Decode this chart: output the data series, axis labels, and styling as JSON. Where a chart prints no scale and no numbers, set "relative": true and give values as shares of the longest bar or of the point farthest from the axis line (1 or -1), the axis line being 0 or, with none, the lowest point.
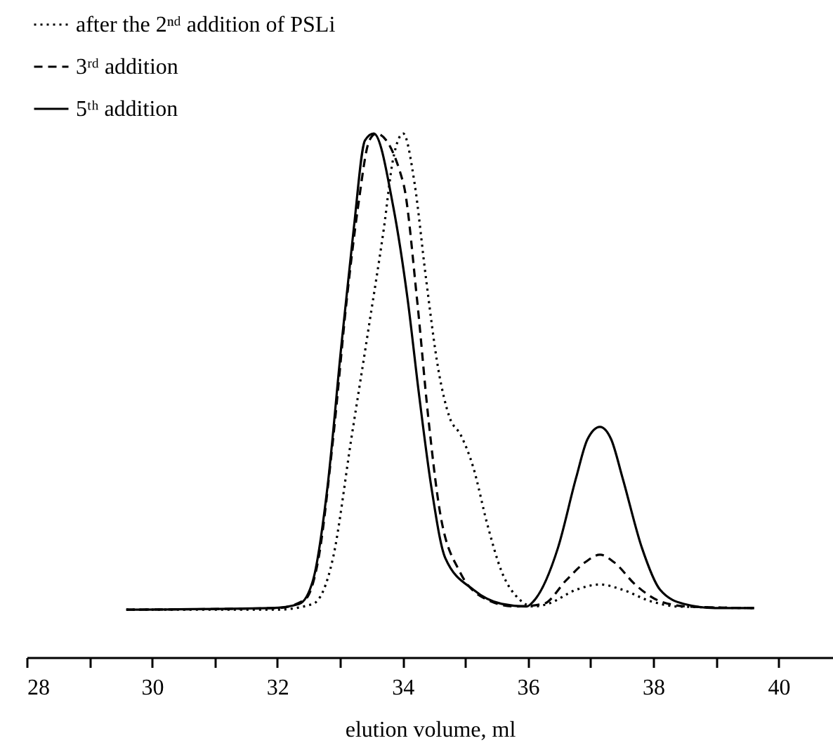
{
  "chart_data": {
    "type": "line",
    "relative": true,
    "xlabel": "elution volume, ml",
    "xlim": [
      28,
      40.87
    ],
    "xticks": [
      28,
      {
        "value": 29,
        "label": null
      },
      30,
      {
        "value": 31,
        "label": null
      },
      32,
      {
        "value": 33,
        "label": null
      },
      34,
      {
        "value": 35,
        "label": null
      },
      36,
      {
        "value": 37,
        "label": null
      },
      38,
      {
        "value": 39,
        "label": null
      },
      40
    ],
    "legend": "top left",
    "marker": "none",
    "grid": false,
    "series": [
      {
        "name": "after the 2ⁿᵈ addition of PSLi",
        "color": "#000000",
        "line_style": "dotted",
        "x": [
          29.59,
          32.0,
          32.57,
          32.89,
          33.18,
          33.47,
          33.7,
          33.85,
          34.01,
          34.19,
          34.37,
          34.57,
          34.75,
          34.93,
          35.13,
          35.35,
          35.58,
          35.87,
          36.09,
          36.32,
          36.77,
          37.15,
          37.51,
          37.96,
          38.4,
          39.61
        ],
        "values": [
          0.091,
          0.091,
          0.102,
          0.19,
          0.416,
          0.638,
          0.818,
          0.952,
          1,
          0.906,
          0.727,
          0.55,
          0.458,
          0.424,
          0.362,
          0.255,
          0.164,
          0.11,
          0.097,
          0.102,
          0.129,
          0.139,
          0.129,
          0.107,
          0.097,
          0.094
        ]
      },
      {
        "name": "3ʳᵈ addition",
        "color": "#000000",
        "line_style": "dashed",
        "x": [
          29.59,
          32.0,
          32.44,
          32.66,
          32.89,
          33.11,
          33.29,
          33.47,
          33.58,
          34.01,
          34.23,
          34.41,
          34.59,
          34.91,
          35.35,
          35.8,
          36.25,
          36.61,
          36.92,
          37.15,
          37.37,
          37.73,
          38.11,
          38.56,
          39.61
        ],
        "values": [
          0.091,
          0.094,
          0.11,
          0.19,
          0.416,
          0.684,
          0.861,
          0.987,
          1,
          0.906,
          0.684,
          0.458,
          0.282,
          0.164,
          0.11,
          0.097,
          0.102,
          0.147,
          0.182,
          0.196,
          0.182,
          0.137,
          0.107,
          0.097,
          0.094
        ]
      },
      {
        "name": "5ᵗʰ addition",
        "color": "#000000",
        "line_style": "solid",
        "x": [
          29.59,
          31.9,
          32.35,
          32.57,
          32.8,
          33.02,
          33.22,
          33.4,
          33.54,
          33.85,
          34.08,
          34.26,
          34.46,
          34.68,
          35.13,
          35.58,
          35.98,
          36.09,
          36.48,
          36.77,
          36.95,
          37.15,
          37.33,
          37.51,
          37.82,
          38.11,
          38.49,
          39.01,
          39.61
        ],
        "values": [
          0.091,
          0.094,
          0.102,
          0.147,
          0.324,
          0.592,
          0.818,
          0.987,
          1,
          0.861,
          0.684,
          0.504,
          0.324,
          0.19,
          0.129,
          0.102,
          0.097,
          0.107,
          0.209,
          0.343,
          0.416,
          0.44,
          0.416,
          0.343,
          0.209,
          0.129,
          0.102,
          0.094,
          0.094
        ]
      }
    ]
  }
}
